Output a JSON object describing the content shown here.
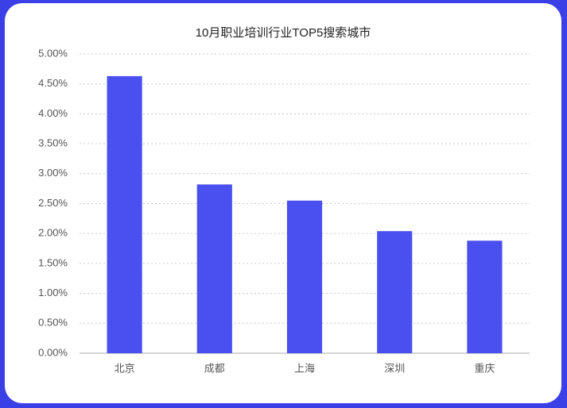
{
  "chart_data": {
    "type": "bar",
    "title": "10月职业培训行业TOP5搜索城市",
    "categories": [
      "北京",
      "成都",
      "上海",
      "深圳",
      "重庆"
    ],
    "values": [
      4.63,
      2.82,
      2.55,
      2.04,
      1.88
    ],
    "color": "#4a4ff0",
    "ylim": [
      0,
      5
    ],
    "yticks": [
      {
        "value": 0,
        "label": "0.00%"
      },
      {
        "value": 0.5,
        "label": "0.50%"
      },
      {
        "value": 1,
        "label": "1.00%"
      },
      {
        "value": 1.5,
        "label": "1.50%"
      },
      {
        "value": 2,
        "label": "2.00%"
      },
      {
        "value": 2.5,
        "label": "2.50%"
      },
      {
        "value": 3,
        "label": "3.00%"
      },
      {
        "value": 3.5,
        "label": "3.50%"
      },
      {
        "value": 4,
        "label": "4.00%"
      },
      {
        "value": 4.5,
        "label": "4.50%"
      },
      {
        "value": 5,
        "label": "5.00%"
      }
    ],
    "grid": true
  }
}
